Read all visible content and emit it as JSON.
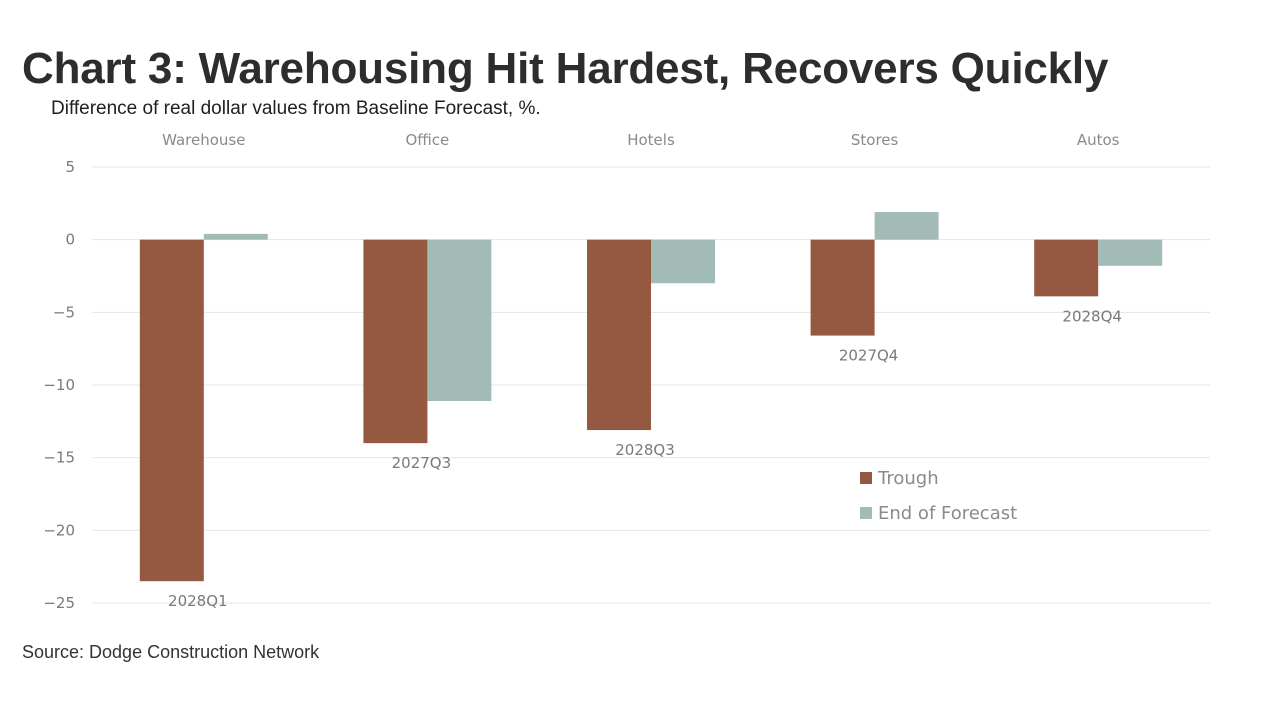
{
  "header": {
    "title": "Chart 3: Warehousing Hit Hardest, Recovers Quickly",
    "subtitle": "Difference of real dollar values from Baseline Forecast, %."
  },
  "footer": {
    "source": "Source: Dodge Construction Network"
  },
  "colors": {
    "trough": "#955840",
    "end_of_forecast": "#a3bbb7",
    "grid": "#e4e4e4",
    "text_muted": "#8a8a8a"
  },
  "chart_data": {
    "type": "bar",
    "title": "Chart 3: Warehousing Hit Hardest, Recovers Quickly",
    "subtitle": "Difference of real dollar values from Baseline Forecast, %.",
    "xlabel": "",
    "ylabel": "",
    "categories": [
      "Warehouse",
      "Office",
      "Hotels",
      "Stores",
      "Autos"
    ],
    "series": [
      {
        "name": "Trough",
        "values": [
          -23.5,
          -14.0,
          -13.1,
          -6.6,
          -3.9
        ]
      },
      {
        "name": "End of Forecast",
        "values": [
          0.4,
          -11.1,
          -3.0,
          1.9,
          -1.8
        ]
      }
    ],
    "trough_labels": [
      "2028Q1",
      "2027Q3",
      "2028Q3",
      "2027Q4",
      "2028Q4"
    ],
    "ylim": [
      -25,
      5
    ],
    "yticks": [
      5,
      0,
      -5,
      -10,
      -15,
      -20,
      -25
    ],
    "grid": true,
    "category_labels_position": "top",
    "legend_position": "lower-right"
  }
}
